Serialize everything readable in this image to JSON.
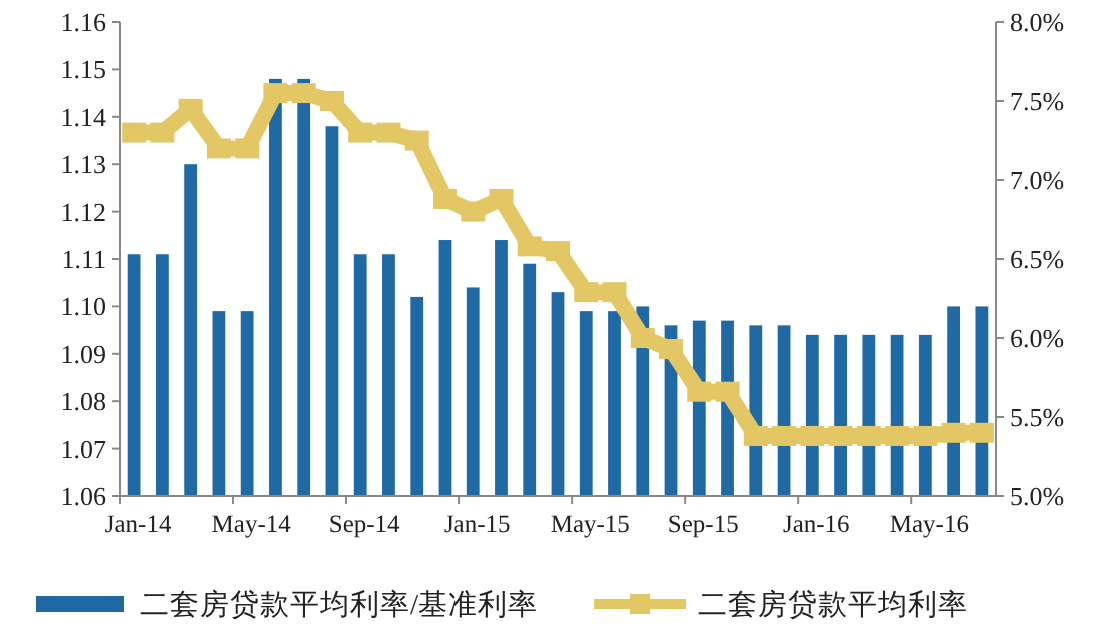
{
  "chart_data": {
    "type": "bar",
    "categories": [
      "Jan-14",
      null,
      null,
      null,
      "May-14",
      null,
      null,
      null,
      "Sep-14",
      null,
      null,
      null,
      "Jan-15",
      null,
      null,
      null,
      "May-15",
      null,
      null,
      null,
      "Sep-15",
      null,
      null,
      null,
      "Jan-16",
      null,
      null,
      null,
      "May-16",
      null,
      null
    ],
    "series": [
      {
        "name": "二套房贷款平均利率/基准利率",
        "color": "#1f6aa5",
        "values": [
          1.111,
          1.111,
          1.13,
          1.099,
          1.099,
          1.148,
          1.148,
          1.138,
          1.111,
          1.111,
          1.102,
          1.114,
          1.104,
          1.114,
          1.109,
          1.103,
          1.099,
          1.099,
          1.1,
          1.096,
          1.097,
          1.097,
          1.096,
          1.096,
          1.094,
          1.094,
          1.094,
          1.094,
          1.094,
          1.1,
          1.1
        ]
      },
      {
        "name": "二套房贷款平均利率",
        "type": "line",
        "axis": "y2",
        "marker": "square",
        "color": "#e3c765",
        "values": [
          7.3,
          7.3,
          7.45,
          7.2,
          7.2,
          7.55,
          7.55,
          7.5,
          7.3,
          7.3,
          7.25,
          6.88,
          6.8,
          6.88,
          6.58,
          6.55,
          6.29,
          6.29,
          6.0,
          5.93,
          5.66,
          5.66,
          5.38,
          5.38,
          5.38,
          5.38,
          5.38,
          5.38,
          5.38,
          5.4,
          5.4
        ]
      }
    ],
    "ylim": [
      1.06,
      1.16
    ],
    "yticks": [
      {
        "value": 1.06,
        "label": "1.06"
      },
      {
        "value": 1.07,
        "label": "1.07"
      },
      {
        "value": 1.08,
        "label": "1.08"
      },
      {
        "value": 1.09,
        "label": "1.09"
      },
      {
        "value": 1.1,
        "label": "1.10"
      },
      {
        "value": 1.11,
        "label": "1.11"
      },
      {
        "value": 1.12,
        "label": "1.12"
      },
      {
        "value": 1.13,
        "label": "1.13"
      },
      {
        "value": 1.14,
        "label": "1.14"
      },
      {
        "value": 1.15,
        "label": "1.15"
      },
      {
        "value": 1.16,
        "label": "1.16"
      }
    ],
    "y2lim": [
      5,
      8
    ],
    "y2ticks": [
      {
        "value": 5,
        "label": "5.0%"
      },
      {
        "value": 5.5,
        "label": "5.5%"
      },
      {
        "value": 6,
        "label": "6.0%"
      },
      {
        "value": 6.5,
        "label": "6.5%"
      },
      {
        "value": 7,
        "label": "7.0%"
      },
      {
        "value": 7.5,
        "label": "7.5%"
      },
      {
        "value": 8,
        "label": "8.0%"
      }
    ],
    "legend": "bottom",
    "grid": false
  }
}
